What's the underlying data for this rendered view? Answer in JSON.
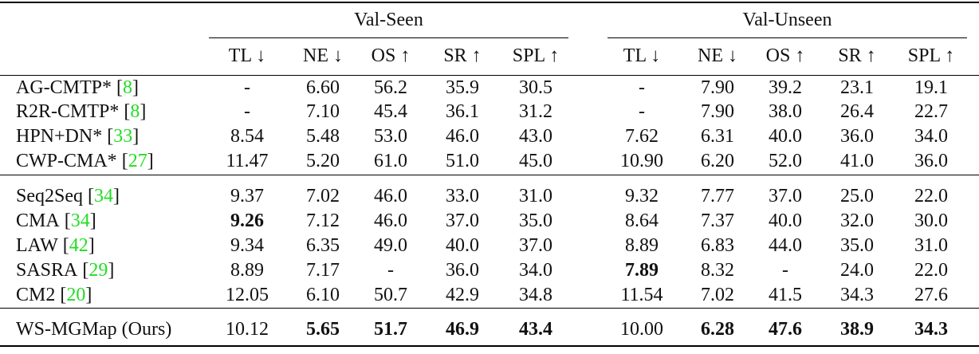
{
  "table": {
    "groups": [
      {
        "label": "Val-Seen",
        "columns": [
          "TL ↓",
          "NE ↓",
          "OS ↑",
          "SR ↑",
          "SPL ↑"
        ]
      },
      {
        "label": "Val-Unseen",
        "columns": [
          "TL ↓",
          "NE ↓",
          "OS ↑",
          "SR ↑",
          "SPL ↑"
        ]
      }
    ],
    "sections": [
      [
        {
          "method": "AG-CMTP*",
          "cite": "8",
          "cells": [
            "-",
            "6.60",
            "56.2",
            "35.9",
            "30.5",
            "-",
            "7.90",
            "39.2",
            "23.1",
            "19.1"
          ],
          "bold": []
        },
        {
          "method": "R2R-CMTP*",
          "cite": "8",
          "cells": [
            "-",
            "7.10",
            "45.4",
            "36.1",
            "31.2",
            "-",
            "7.90",
            "38.0",
            "26.4",
            "22.7"
          ],
          "bold": []
        },
        {
          "method": "HPN+DN*",
          "cite": "33",
          "cells": [
            "8.54",
            "5.48",
            "53.0",
            "46.0",
            "43.0",
            "7.62",
            "6.31",
            "40.0",
            "36.0",
            "34.0"
          ],
          "bold": []
        },
        {
          "method": "CWP-CMA*",
          "cite": "27",
          "cells": [
            "11.47",
            "5.20",
            "61.0",
            "51.0",
            "45.0",
            "10.90",
            "6.20",
            "52.0",
            "41.0",
            "36.0"
          ],
          "bold": []
        }
      ],
      [
        {
          "method": "Seq2Seq",
          "cite": "34",
          "cells": [
            "9.37",
            "7.02",
            "46.0",
            "33.0",
            "31.0",
            "9.32",
            "7.77",
            "37.0",
            "25.0",
            "22.0"
          ],
          "bold": []
        },
        {
          "method": "CMA",
          "cite": "34",
          "cells": [
            "9.26",
            "7.12",
            "46.0",
            "37.0",
            "35.0",
            "8.64",
            "7.37",
            "40.0",
            "32.0",
            "30.0"
          ],
          "bold": [
            0
          ]
        },
        {
          "method": "LAW",
          "cite": "42",
          "cells": [
            "9.34",
            "6.35",
            "49.0",
            "40.0",
            "37.0",
            "8.89",
            "6.83",
            "44.0",
            "35.0",
            "31.0"
          ],
          "bold": []
        },
        {
          "method": "SASRA",
          "cite": "29",
          "cells": [
            "8.89",
            "7.17",
            "-",
            "36.0",
            "34.0",
            "7.89",
            "8.32",
            "-",
            "24.0",
            "22.0"
          ],
          "bold": [
            5
          ]
        },
        {
          "method": "CM2",
          "cite": "20",
          "cells": [
            "12.05",
            "6.10",
            "50.7",
            "42.9",
            "34.8",
            "11.54",
            "7.02",
            "41.5",
            "34.3",
            "27.6"
          ],
          "bold": []
        }
      ],
      [
        {
          "method": "WS-MGMap (Ours)",
          "cells": [
            "10.12",
            "5.65",
            "51.7",
            "46.9",
            "43.4",
            "10.00",
            "6.28",
            "47.6",
            "38.9",
            "34.3"
          ],
          "bold": [
            1,
            2,
            3,
            4,
            6,
            7,
            8,
            9
          ]
        }
      ]
    ]
  }
}
